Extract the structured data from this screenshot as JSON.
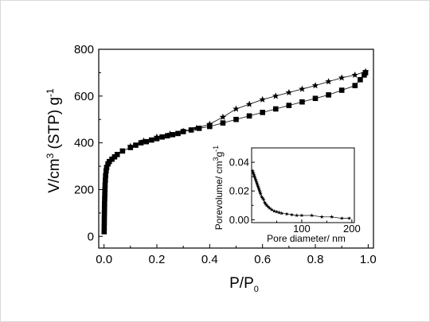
{
  "chart_data": [
    {
      "type": "scatter",
      "xlabel": "P/P",
      "xlabel_sub": "0",
      "ylabel": "V/cm",
      "ylabel_sup": "3",
      "ylabel_mid": " (STP) g",
      "ylabel_sup2": "-1",
      "xlim": [
        -0.02,
        1.02
      ],
      "ylim": [
        -50,
        800
      ],
      "xticks": [
        0.0,
        0.2,
        0.4,
        0.6,
        0.8,
        1.0
      ],
      "xtick_labels": [
        "0.0",
        "0.2",
        "0.4",
        "0.6",
        "0.8",
        "1.0"
      ],
      "yticks": [
        0,
        200,
        400,
        600,
        800
      ],
      "ytick_labels": [
        "0",
        "200",
        "400",
        "600",
        "800"
      ],
      "series": [
        {
          "marker": "square",
          "x": [
            0.0005,
            0.0008,
            0.001,
            0.0012,
            0.0015,
            0.0018,
            0.002,
            0.0025,
            0.003,
            0.0035,
            0.004,
            0.005,
            0.006,
            0.008,
            0.01,
            0.015,
            0.02,
            0.03,
            0.04,
            0.05,
            0.07,
            0.1,
            0.12,
            0.14,
            0.16,
            0.18,
            0.2,
            0.22,
            0.24,
            0.26,
            0.28,
            0.3,
            0.33,
            0.36,
            0.4,
            0.45,
            0.5,
            0.55,
            0.6,
            0.65,
            0.7,
            0.75,
            0.8,
            0.85,
            0.9,
            0.95,
            0.97,
            0.985,
            0.99
          ],
          "y": [
            20,
            40,
            60,
            80,
            100,
            120,
            140,
            160,
            180,
            200,
            220,
            240,
            260,
            280,
            295,
            310,
            320,
            330,
            340,
            350,
            365,
            380,
            390,
            400,
            405,
            412,
            418,
            425,
            430,
            435,
            440,
            448,
            455,
            462,
            470,
            485,
            500,
            515,
            530,
            545,
            560,
            575,
            590,
            605,
            625,
            645,
            670,
            690,
            700
          ]
        },
        {
          "marker": "star",
          "x": [
            0.1,
            0.15,
            0.2,
            0.25,
            0.3,
            0.35,
            0.4,
            0.45,
            0.5,
            0.55,
            0.6,
            0.65,
            0.7,
            0.75,
            0.8,
            0.85,
            0.9,
            0.95,
            0.99
          ],
          "y": [
            385,
            408,
            425,
            438,
            450,
            462,
            480,
            510,
            545,
            565,
            585,
            600,
            615,
            630,
            645,
            662,
            678,
            690,
            705
          ]
        }
      ]
    },
    {
      "type": "line",
      "xlabel": "Pore diameter/ nm",
      "ylabel": "Porevolume/ cm",
      "ylabel_sup": "3",
      "ylabel_mid": "g",
      "ylabel_sup2": "-1",
      "xlim": [
        0,
        205
      ],
      "ylim": [
        -0.002,
        0.05
      ],
      "xticks": [
        100,
        200
      ],
      "xtick_labels": [
        "100",
        "200"
      ],
      "yticks": [
        0.0,
        0.02,
        0.04
      ],
      "ytick_labels": [
        "0.00",
        "0.02",
        "0.04"
      ],
      "series": [
        {
          "marker": "star",
          "x": [
            2,
            3,
            4,
            5,
            6,
            7,
            8,
            9,
            10,
            11,
            12,
            13,
            14,
            15,
            16,
            17,
            18,
            20,
            22,
            24,
            26,
            28,
            30,
            33,
            36,
            40,
            45,
            50,
            55,
            60,
            70,
            80,
            90,
            100,
            120,
            140,
            160,
            180,
            195
          ],
          "y": [
            0.034,
            0.033,
            0.032,
            0.031,
            0.03,
            0.029,
            0.028,
            0.027,
            0.026,
            0.025,
            0.024,
            0.023,
            0.022,
            0.021,
            0.02,
            0.019,
            0.018,
            0.016,
            0.015,
            0.014,
            0.012,
            0.011,
            0.01,
            0.009,
            0.008,
            0.007,
            0.006,
            0.0055,
            0.005,
            0.0045,
            0.004,
            0.0035,
            0.003,
            0.003,
            0.003,
            0.002,
            0.002,
            0.001,
            0.001
          ]
        }
      ]
    }
  ]
}
